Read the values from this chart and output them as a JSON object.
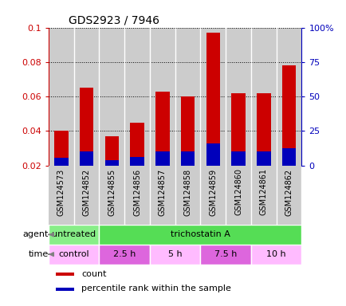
{
  "title": "GDS2923 / 7946",
  "samples": [
    "GSM124573",
    "GSM124852",
    "GSM124855",
    "GSM124856",
    "GSM124857",
    "GSM124858",
    "GSM124859",
    "GSM124860",
    "GSM124861",
    "GSM124862"
  ],
  "count_values": [
    0.04,
    0.065,
    0.037,
    0.045,
    0.063,
    0.06,
    0.097,
    0.062,
    0.062,
    0.078
  ],
  "percentile_values": [
    0.0245,
    0.028,
    0.023,
    0.025,
    0.028,
    0.028,
    0.033,
    0.028,
    0.028,
    0.03
  ],
  "bar_bottom": 0.02,
  "ylim": [
    0.02,
    0.1
  ],
  "yticks_left": [
    0.02,
    0.04,
    0.06,
    0.08,
    0.1
  ],
  "yticks_right": [
    0,
    25,
    50,
    75,
    100
  ],
  "ylabel_left_color": "#cc0000",
  "ylabel_right_color": "#0000bb",
  "count_color": "#cc0000",
  "percentile_color": "#0000bb",
  "grid_color": "#000000",
  "col_bg_color": "#cccccc",
  "agent_row": [
    {
      "label": "untreated",
      "span": [
        0,
        2
      ],
      "color": "#88ee88"
    },
    {
      "label": "trichostatin A",
      "span": [
        2,
        10
      ],
      "color": "#55dd55"
    }
  ],
  "time_row": [
    {
      "label": "control",
      "span": [
        0,
        2
      ],
      "color": "#ffbbff"
    },
    {
      "label": "2.5 h",
      "span": [
        2,
        4
      ],
      "color": "#dd66dd"
    },
    {
      "label": "5 h",
      "span": [
        4,
        6
      ],
      "color": "#ffbbff"
    },
    {
      "label": "7.5 h",
      "span": [
        6,
        8
      ],
      "color": "#dd66dd"
    },
    {
      "label": "10 h",
      "span": [
        8,
        10
      ],
      "color": "#ffbbff"
    }
  ],
  "agent_label": "agent",
  "time_label": "time",
  "legend_count": "count",
  "legend_percentile": "percentile rank within the sample",
  "bar_width": 0.55,
  "tick_label_fontsize": 7,
  "axis_label_fontsize": 8
}
